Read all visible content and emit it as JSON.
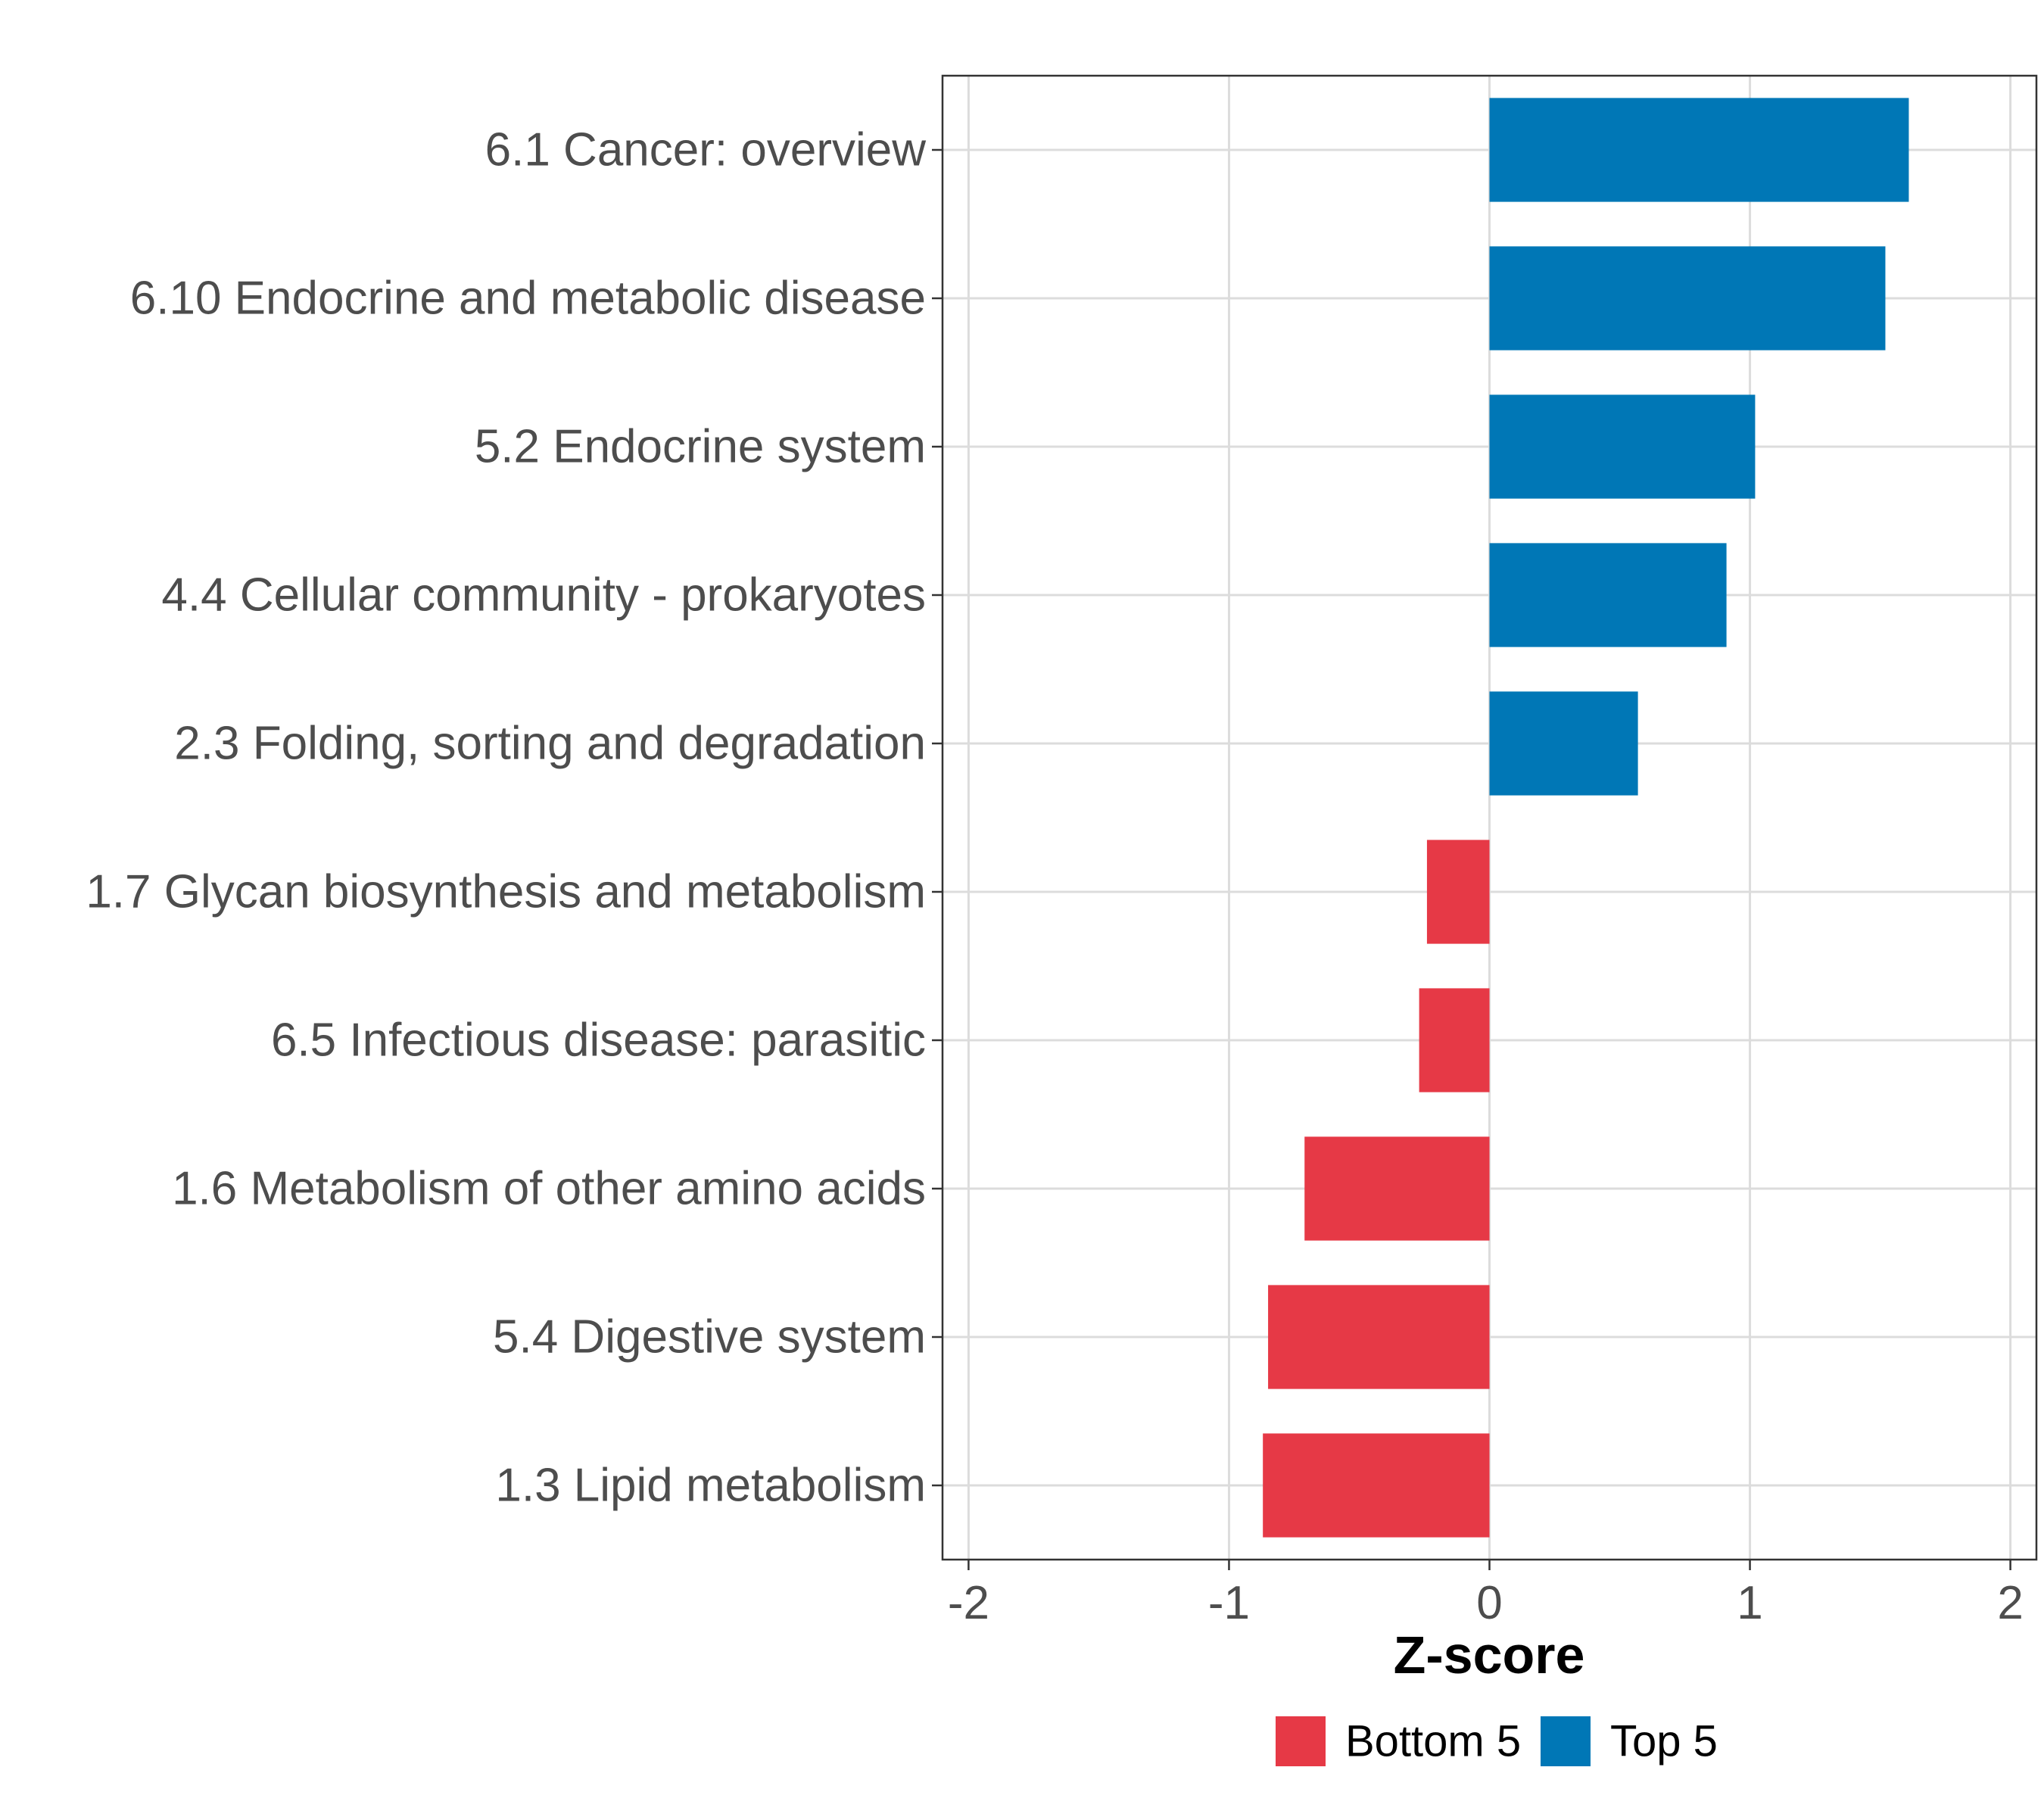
{
  "chart_data": {
    "type": "bar",
    "orientation": "horizontal",
    "title": "",
    "xlabel": "Z-score",
    "ylabel": "",
    "xlim": [
      -2.1,
      2.1
    ],
    "xticks": [
      -2,
      -1,
      0,
      1,
      2
    ],
    "xtick_labels": [
      "-2",
      "-1",
      "0",
      "1",
      "2"
    ],
    "grid": true,
    "legend_position": "bottom",
    "categories": [
      "6.1 Cancer: overview",
      "6.10 Endocrine and metabolic disease",
      "5.2 Endocrine system",
      "4.4 Cellular community - prokaryotes",
      "2.3 Folding, sorting and degradation",
      "1.7 Glycan biosynthesis and metabolism",
      "6.5 Infectious disease: parasitic",
      "1.6 Metabolism of other amino acids",
      "5.4 Digestive system",
      "1.3 Lipid metabolism"
    ],
    "values": [
      1.61,
      1.52,
      1.02,
      0.91,
      0.57,
      -0.24,
      -0.27,
      -0.71,
      -0.85,
      -0.87
    ],
    "groups": [
      "Top 5",
      "Top 5",
      "Top 5",
      "Top 5",
      "Top 5",
      "Bottom 5",
      "Bottom 5",
      "Bottom 5",
      "Bottom 5",
      "Bottom 5"
    ],
    "legend": [
      {
        "name": "Bottom 5",
        "color": "#E63946"
      },
      {
        "name": "Top 5",
        "color": "#0077B6"
      }
    ]
  }
}
